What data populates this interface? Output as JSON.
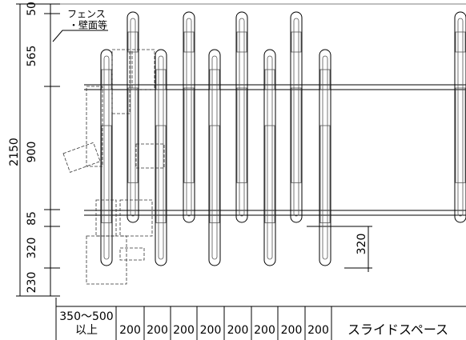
{
  "dimensions": {
    "overall": "2150",
    "left": [
      "50",
      "565",
      "900",
      "85",
      "320",
      "230"
    ],
    "right": "320"
  },
  "fence_note": {
    "line1": "フェンス",
    "line2": "・壁面等"
  },
  "bottom": {
    "first": {
      "line1": "350～500",
      "line2": "以上"
    },
    "pitches": [
      "200",
      "200",
      "200",
      "200",
      "200",
      "200",
      "200",
      "200"
    ],
    "slide": "スライドスペース"
  }
}
